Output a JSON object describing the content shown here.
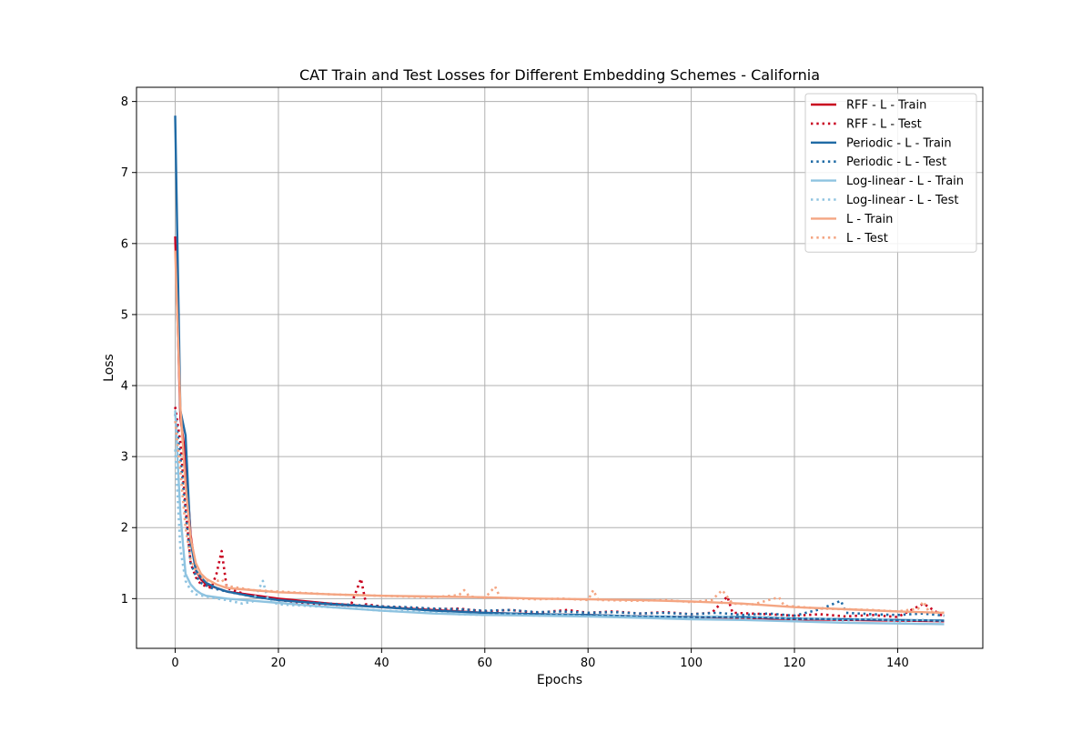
{
  "chart_data": {
    "type": "line",
    "title": "CAT Train and Test Losses for Different Embedding Schemes - California",
    "xlabel": "Epochs",
    "ylabel": "Loss",
    "xlim": [
      -7.5,
      156.5
    ],
    "ylim": [
      0.3,
      8.2
    ],
    "xticks": [
      0,
      20,
      40,
      60,
      80,
      100,
      120,
      140
    ],
    "yticks": [
      1,
      2,
      3,
      4,
      5,
      6,
      7,
      8
    ],
    "grid": true,
    "legend_position": "top-right",
    "series": [
      {
        "name": "RFF - L - Train",
        "style": "solid",
        "color": "#c8001e",
        "points": [
          [
            0,
            6.1
          ],
          [
            1,
            3.55
          ],
          [
            2,
            3.0
          ],
          [
            3,
            1.9
          ],
          [
            4,
            1.4
          ],
          [
            5,
            1.27
          ],
          [
            6,
            1.2
          ],
          [
            8,
            1.15
          ],
          [
            10,
            1.1
          ],
          [
            15,
            1.05
          ],
          [
            20,
            1.0
          ],
          [
            30,
            0.93
          ],
          [
            40,
            0.88
          ],
          [
            50,
            0.84
          ],
          [
            60,
            0.8
          ],
          [
            70,
            0.78
          ],
          [
            80,
            0.77
          ],
          [
            90,
            0.75
          ],
          [
            100,
            0.74
          ],
          [
            110,
            0.73
          ],
          [
            120,
            0.71
          ],
          [
            130,
            0.7
          ],
          [
            140,
            0.69
          ],
          [
            149,
            0.68
          ]
        ]
      },
      {
        "name": "RFF - L - Test",
        "style": "dotted",
        "color": "#c8001e",
        "points": [
          [
            0,
            3.7
          ],
          [
            1,
            3.2
          ],
          [
            2,
            2.3
          ],
          [
            3,
            1.5
          ],
          [
            4,
            1.3
          ],
          [
            5,
            1.2
          ],
          [
            7,
            1.15
          ],
          [
            8,
            1.35
          ],
          [
            9,
            1.67
          ],
          [
            10,
            1.15
          ],
          [
            14,
            1.05
          ],
          [
            20,
            0.98
          ],
          [
            26,
            0.93
          ],
          [
            30,
            0.92
          ],
          [
            34,
            0.9
          ],
          [
            36,
            1.28
          ],
          [
            37,
            0.92
          ],
          [
            40,
            0.89
          ],
          [
            45,
            0.87
          ],
          [
            50,
            0.85
          ],
          [
            55,
            0.86
          ],
          [
            60,
            0.82
          ],
          [
            65,
            0.84
          ],
          [
            70,
            0.8
          ],
          [
            76,
            0.84
          ],
          [
            80,
            0.8
          ],
          [
            85,
            0.82
          ],
          [
            90,
            0.79
          ],
          [
            95,
            0.81
          ],
          [
            100,
            0.78
          ],
          [
            104,
            0.8
          ],
          [
            107,
            1.03
          ],
          [
            108,
            0.8
          ],
          [
            115,
            0.78
          ],
          [
            120,
            0.76
          ],
          [
            125,
            0.78
          ],
          [
            130,
            0.75
          ],
          [
            135,
            0.77
          ],
          [
            140,
            0.74
          ],
          [
            145,
            0.93
          ],
          [
            149,
            0.74
          ]
        ]
      },
      {
        "name": "Periodic - L - Train",
        "style": "solid",
        "color": "#1f6aa5",
        "points": [
          [
            0,
            7.8
          ],
          [
            1,
            3.65
          ],
          [
            2,
            3.3
          ],
          [
            3,
            1.8
          ],
          [
            4,
            1.4
          ],
          [
            5,
            1.3
          ],
          [
            6,
            1.22
          ],
          [
            8,
            1.15
          ],
          [
            10,
            1.1
          ],
          [
            15,
            1.03
          ],
          [
            20,
            0.98
          ],
          [
            30,
            0.92
          ],
          [
            40,
            0.88
          ],
          [
            50,
            0.83
          ],
          [
            60,
            0.8
          ],
          [
            70,
            0.78
          ],
          [
            80,
            0.77
          ],
          [
            90,
            0.75
          ],
          [
            100,
            0.74
          ],
          [
            110,
            0.74
          ],
          [
            120,
            0.72
          ],
          [
            130,
            0.71
          ],
          [
            140,
            0.7
          ],
          [
            149,
            0.69
          ]
        ]
      },
      {
        "name": "Periodic - L - Test",
        "style": "dotted",
        "color": "#1f6aa5",
        "points": [
          [
            0,
            3.6
          ],
          [
            1,
            3.0
          ],
          [
            2,
            2.2
          ],
          [
            3,
            1.5
          ],
          [
            4,
            1.32
          ],
          [
            5,
            1.22
          ],
          [
            7,
            1.15
          ],
          [
            10,
            1.1
          ],
          [
            15,
            1.03
          ],
          [
            20,
            0.98
          ],
          [
            25,
            0.95
          ],
          [
            30,
            0.93
          ],
          [
            35,
            0.91
          ],
          [
            40,
            0.89
          ],
          [
            45,
            0.88
          ],
          [
            50,
            0.86
          ],
          [
            55,
            0.85
          ],
          [
            60,
            0.83
          ],
          [
            65,
            0.84
          ],
          [
            70,
            0.81
          ],
          [
            75,
            0.82
          ],
          [
            80,
            0.8
          ],
          [
            85,
            0.81
          ],
          [
            90,
            0.79
          ],
          [
            95,
            0.8
          ],
          [
            100,
            0.78
          ],
          [
            105,
            0.8
          ],
          [
            110,
            0.77
          ],
          [
            115,
            0.79
          ],
          [
            120,
            0.76
          ],
          [
            125,
            0.85
          ],
          [
            129,
            0.97
          ],
          [
            130,
            0.8
          ],
          [
            135,
            0.78
          ],
          [
            140,
            0.77
          ],
          [
            145,
            0.79
          ],
          [
            149,
            0.76
          ]
        ]
      },
      {
        "name": "Log-linear - L - Train",
        "style": "solid",
        "color": "#8ec3e0",
        "points": [
          [
            0,
            3.65
          ],
          [
            1,
            2.2
          ],
          [
            2,
            1.35
          ],
          [
            3,
            1.2
          ],
          [
            4,
            1.12
          ],
          [
            5,
            1.07
          ],
          [
            6,
            1.04
          ],
          [
            8,
            1.02
          ],
          [
            10,
            1.0
          ],
          [
            15,
            0.97
          ],
          [
            20,
            0.94
          ],
          [
            30,
            0.88
          ],
          [
            40,
            0.83
          ],
          [
            50,
            0.79
          ],
          [
            60,
            0.77
          ],
          [
            70,
            0.76
          ],
          [
            80,
            0.75
          ],
          [
            90,
            0.73
          ],
          [
            100,
            0.71
          ],
          [
            110,
            0.7
          ],
          [
            120,
            0.68
          ],
          [
            130,
            0.66
          ],
          [
            140,
            0.65
          ],
          [
            149,
            0.64
          ]
        ]
      },
      {
        "name": "Log-linear - L - Test",
        "style": "dotted",
        "color": "#8ec3e0",
        "points": [
          [
            0,
            3.1
          ],
          [
            1,
            1.7
          ],
          [
            2,
            1.25
          ],
          [
            3,
            1.12
          ],
          [
            4,
            1.06
          ],
          [
            6,
            1.03
          ],
          [
            8,
            1.0
          ],
          [
            10,
            0.98
          ],
          [
            13,
            0.93
          ],
          [
            15,
            0.96
          ],
          [
            17,
            1.25
          ],
          [
            18,
            0.98
          ],
          [
            20,
            0.92
          ],
          [
            25,
            0.9
          ],
          [
            30,
            0.88
          ],
          [
            35,
            0.86
          ],
          [
            40,
            0.83
          ],
          [
            45,
            0.82
          ],
          [
            50,
            0.8
          ],
          [
            55,
            0.78
          ],
          [
            60,
            0.77
          ],
          [
            65,
            0.78
          ],
          [
            70,
            0.76
          ],
          [
            75,
            0.77
          ],
          [
            80,
            0.75
          ],
          [
            85,
            0.76
          ],
          [
            90,
            0.74
          ],
          [
            95,
            0.75
          ],
          [
            100,
            0.73
          ],
          [
            105,
            0.75
          ],
          [
            110,
            0.72
          ],
          [
            115,
            0.74
          ],
          [
            120,
            0.71
          ],
          [
            125,
            0.72
          ],
          [
            130,
            0.69
          ],
          [
            135,
            0.72
          ],
          [
            140,
            0.68
          ],
          [
            145,
            0.7
          ],
          [
            149,
            0.67
          ]
        ]
      },
      {
        "name": "L - Train",
        "style": "solid",
        "color": "#f4a582",
        "points": [
          [
            0,
            5.9
          ],
          [
            1,
            3.7
          ],
          [
            2,
            2.6
          ],
          [
            3,
            1.85
          ],
          [
            4,
            1.5
          ],
          [
            5,
            1.35
          ],
          [
            6,
            1.28
          ],
          [
            8,
            1.2
          ],
          [
            10,
            1.15
          ],
          [
            15,
            1.12
          ],
          [
            20,
            1.09
          ],
          [
            30,
            1.06
          ],
          [
            40,
            1.04
          ],
          [
            50,
            1.03
          ],
          [
            60,
            1.02
          ],
          [
            70,
            1.0
          ],
          [
            80,
            0.99
          ],
          [
            90,
            0.98
          ],
          [
            100,
            0.96
          ],
          [
            110,
            0.93
          ],
          [
            120,
            0.88
          ],
          [
            130,
            0.85
          ],
          [
            140,
            0.82
          ],
          [
            149,
            0.8
          ]
        ]
      },
      {
        "name": "L - Test",
        "style": "dotted",
        "color": "#f4a582",
        "points": [
          [
            0,
            3.5
          ],
          [
            1,
            2.8
          ],
          [
            2,
            2.0
          ],
          [
            3,
            1.55
          ],
          [
            4,
            1.4
          ],
          [
            5,
            1.3
          ],
          [
            7,
            1.22
          ],
          [
            9,
            1.27
          ],
          [
            10,
            1.18
          ],
          [
            15,
            1.12
          ],
          [
            20,
            1.1
          ],
          [
            25,
            1.08
          ],
          [
            30,
            1.06
          ],
          [
            35,
            1.05
          ],
          [
            40,
            1.04
          ],
          [
            45,
            1.03
          ],
          [
            50,
            1.02
          ],
          [
            55,
            1.05
          ],
          [
            56,
            1.12
          ],
          [
            57,
            1.03
          ],
          [
            60,
            1.01
          ],
          [
            62,
            1.17
          ],
          [
            63,
            1.01
          ],
          [
            70,
            0.99
          ],
          [
            75,
            1.0
          ],
          [
            80,
            0.98
          ],
          [
            81,
            1.12
          ],
          [
            82,
            0.98
          ],
          [
            90,
            0.97
          ],
          [
            95,
            0.98
          ],
          [
            100,
            0.95
          ],
          [
            104,
            0.98
          ],
          [
            106,
            1.12
          ],
          [
            108,
            0.93
          ],
          [
            112,
            0.92
          ],
          [
            117,
            1.02
          ],
          [
            118,
            0.9
          ],
          [
            125,
            0.86
          ],
          [
            130,
            0.85
          ],
          [
            135,
            0.84
          ],
          [
            140,
            0.82
          ],
          [
            144,
            0.86
          ],
          [
            145,
            0.96
          ],
          [
            146,
            0.82
          ],
          [
            149,
            0.8
          ]
        ]
      }
    ]
  }
}
